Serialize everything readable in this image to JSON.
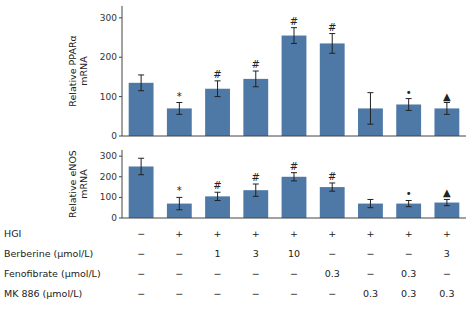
{
  "chart_data": [
    {
      "type": "bar",
      "ylabel": "Relative PPARα\nmRNA",
      "categories": [
        null,
        null,
        null,
        null,
        null,
        null,
        null,
        null,
        null
      ],
      "values": [
        135,
        70,
        120,
        145,
        255,
        235,
        70,
        80,
        70
      ],
      "errors": [
        20,
        15,
        20,
        20,
        20,
        25,
        40,
        15,
        15
      ],
      "annotations": [
        null,
        "*",
        "#",
        "#",
        "#",
        "#",
        null,
        "•",
        "▲"
      ],
      "color": "#4e79a7",
      "ylim": [
        0,
        330
      ],
      "yticks": [
        0,
        100,
        200,
        300
      ],
      "grid": false
    },
    {
      "type": "bar",
      "ylabel": "Relative eNOS\nmRNA",
      "categories": [
        null,
        null,
        null,
        null,
        null,
        null,
        null,
        null,
        null
      ],
      "values": [
        250,
        70,
        105,
        135,
        200,
        150,
        70,
        70,
        75
      ],
      "errors": [
        40,
        30,
        20,
        30,
        20,
        20,
        20,
        15,
        15
      ],
      "annotations": [
        null,
        "*",
        "#",
        "#",
        "#",
        "#",
        null,
        "•",
        "▲"
      ],
      "color": "#4e79a7",
      "ylim": [
        0,
        330
      ],
      "yticks": [
        0,
        100,
        200,
        300
      ],
      "grid": false,
      "table": {
        "rows": [
          "HGI",
          "Berberine (μmol/L)",
          "Fenofibrate (μmol/L)",
          "MK 886 (μmol/L)"
        ],
        "cells": [
          [
            "−",
            "+",
            "+",
            "+",
            "+",
            "+",
            "+",
            "+",
            "+"
          ],
          [
            "−",
            "−",
            "1",
            "3",
            "10",
            "−",
            "−",
            "−",
            "3"
          ],
          [
            "−",
            "−",
            "−",
            "−",
            "−",
            "0.3",
            "−",
            "0.3",
            "−"
          ],
          [
            "−",
            "−",
            "−",
            "−",
            "−",
            "−",
            "0.3",
            "0.3",
            "0.3"
          ]
        ]
      }
    }
  ]
}
